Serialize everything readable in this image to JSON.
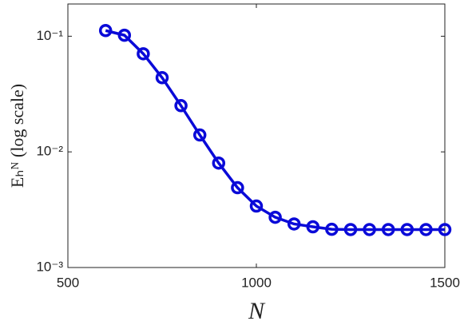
{
  "chart_data": {
    "type": "line",
    "x_label": "N",
    "y_label": "Eₕᴺ (log scale)",
    "x": [
      600,
      650,
      700,
      750,
      800,
      850,
      900,
      950,
      1000,
      1050,
      1100,
      1150,
      1200,
      1250,
      1300,
      1350,
      1400,
      1450,
      1500
    ],
    "series": [
      {
        "color": "#0a0ad8",
        "marker": "circle",
        "values": [
          0.112,
          0.102,
          0.0705,
          0.0438,
          0.0251,
          0.014,
          0.008,
          0.0049,
          0.0034,
          0.00272,
          0.00238,
          0.00225,
          0.00214,
          0.00213,
          0.00213,
          0.00213,
          0.00213,
          0.00213,
          0.00213
        ]
      }
    ],
    "xlim": [
      500,
      1500
    ],
    "xticks": [
      500,
      1000,
      1500
    ],
    "ylim": [
      0.001,
      0.19
    ],
    "y_scale": "log",
    "yticks": [
      {
        "value": 0.001,
        "label": "10⁻³"
      },
      {
        "value": 0.01,
        "label": "10⁻²"
      },
      {
        "value": 0.1,
        "label": "10⁻¹"
      }
    ]
  }
}
